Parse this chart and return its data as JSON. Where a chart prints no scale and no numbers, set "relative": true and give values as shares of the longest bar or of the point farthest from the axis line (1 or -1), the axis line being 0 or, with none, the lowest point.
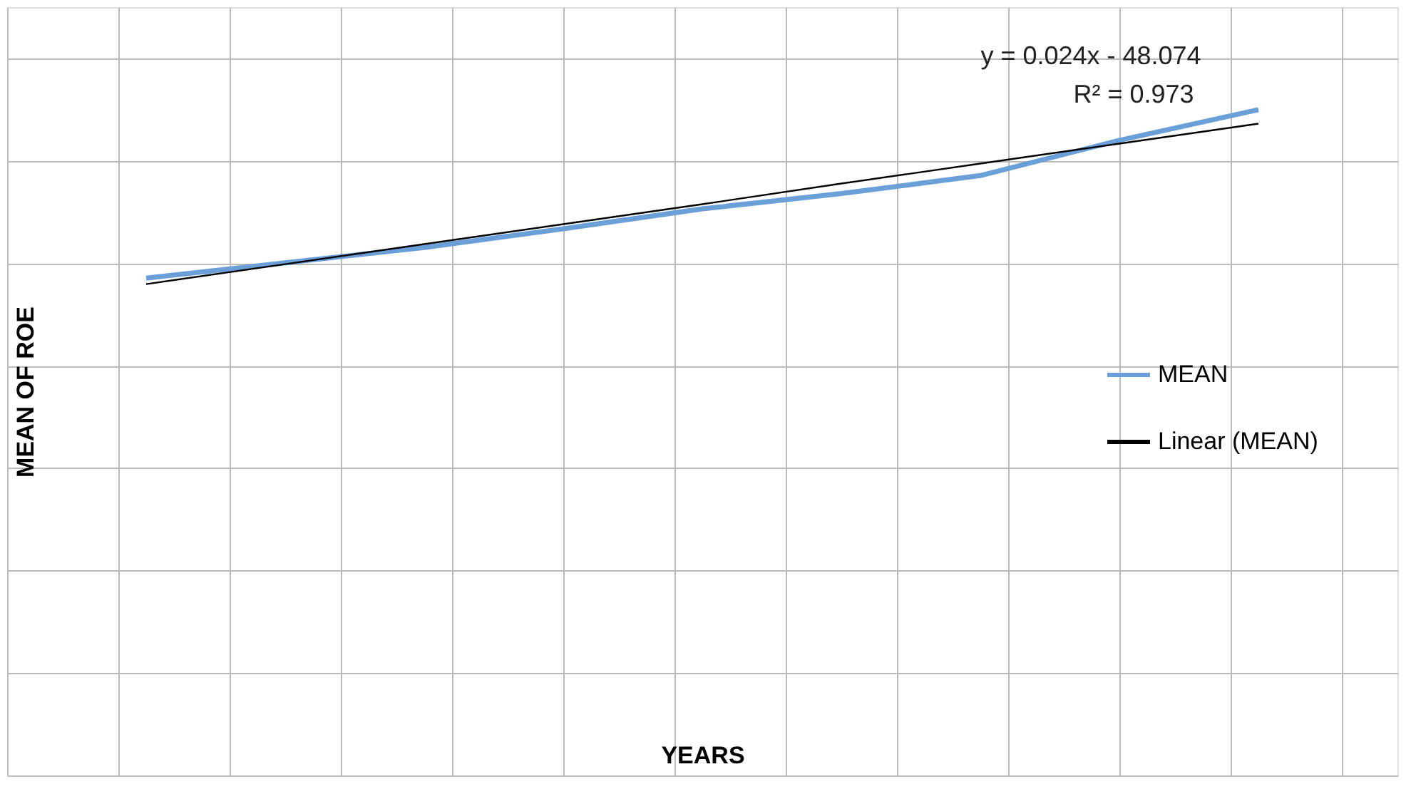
{
  "chart_data": {
    "type": "line",
    "relative": true,
    "xlabel": "YEARS",
    "ylabel": "MEAN OF ROE",
    "categories": [
      null,
      null,
      null,
      null,
      null,
      null,
      null,
      null,
      null
    ],
    "series": [
      {
        "name": "MEAN",
        "color": "#6a9fd8",
        "values": [
          0.747,
          0.77,
          0.793,
          0.821,
          0.851,
          0.874,
          0.901,
          0.954,
          1.0
        ]
      },
      {
        "name": "Linear (MEAN)",
        "type": "line",
        "color": "#000000",
        "values": [
          0.738,
          0.768,
          0.798,
          0.828,
          0.858,
          0.889,
          0.919,
          0.949,
          0.979
        ]
      }
    ],
    "annotations": [
      "y = 0.024x - 48.074",
      "R² = 0.973"
    ],
    "grid": true,
    "legend": "right",
    "line_style": "solid"
  }
}
